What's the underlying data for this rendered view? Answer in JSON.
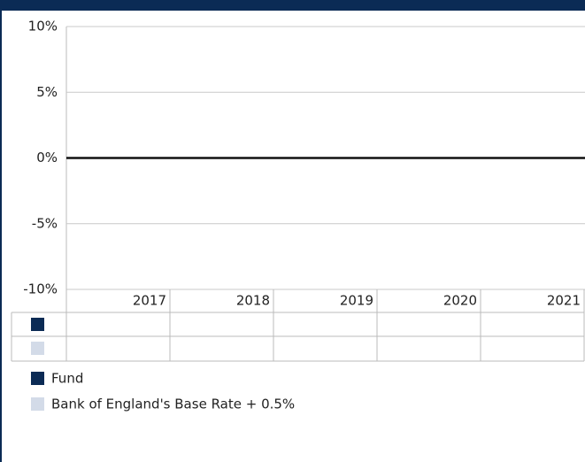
{
  "chart_data": {
    "type": "bar",
    "categories": [
      "2017",
      "2018",
      "2019",
      "2020",
      "2021"
    ],
    "series": [
      {
        "name": "Fund",
        "color": "#0b2b55",
        "values": [
          null,
          null,
          null,
          null,
          null
        ]
      },
      {
        "name": "Bank of England's Base Rate + 0.5%",
        "color": "#d3dbe8",
        "values": [
          null,
          null,
          null,
          null,
          null
        ]
      }
    ],
    "ylim": [
      -10,
      10
    ],
    "yticks": [
      {
        "value": 10,
        "label": "10%"
      },
      {
        "value": 5,
        "label": "5%"
      },
      {
        "value": 0,
        "label": "0%"
      },
      {
        "value": -5,
        "label": "-5%"
      },
      {
        "value": -10,
        "label": "-10%"
      }
    ],
    "grid": true
  }
}
